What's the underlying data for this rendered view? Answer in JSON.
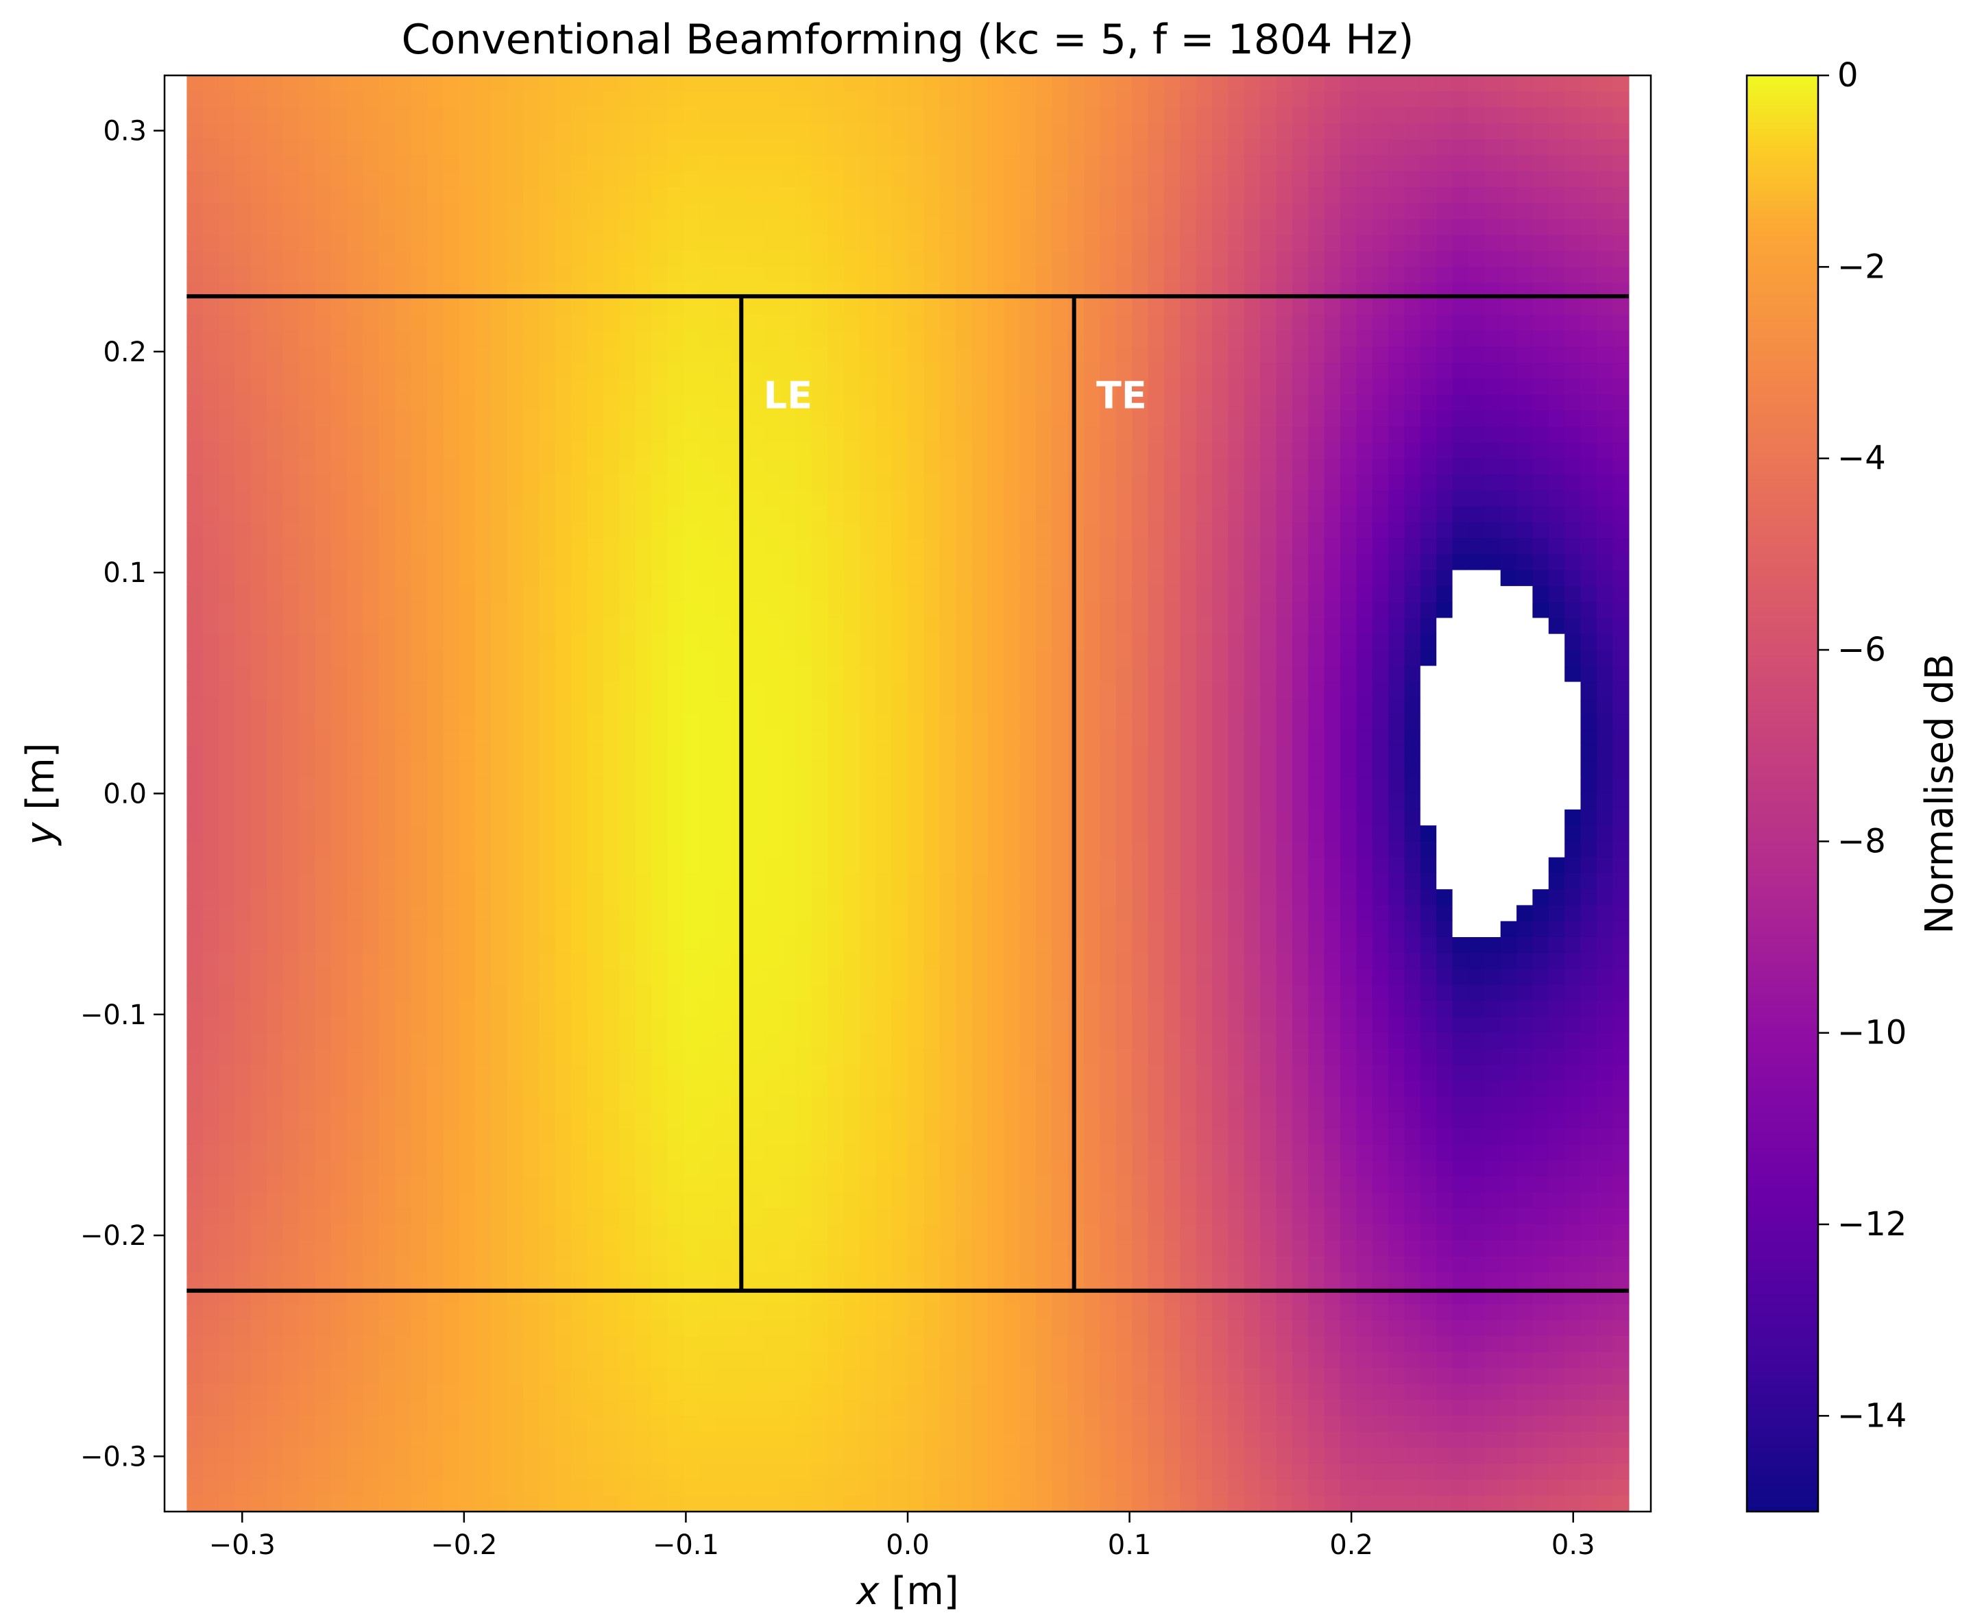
{
  "chart_data": {
    "type": "heatmap",
    "title": "Conventional Beamforming (kc = 5, f = 1804 Hz)",
    "xlabel_var": "x",
    "xlabel_unit": " [m]",
    "ylabel_var": "y",
    "ylabel_unit": " [m]",
    "xlim": [
      -0.335,
      0.335
    ],
    "ylim": [
      -0.325,
      0.325
    ],
    "data_extent_x": [
      -0.325,
      0.325
    ],
    "data_extent_y": [
      -0.325,
      0.325
    ],
    "x_ticks": [
      -0.3,
      -0.2,
      -0.1,
      0.0,
      0.1,
      0.2,
      0.3
    ],
    "x_tick_labels": [
      "−0.3",
      "−0.2",
      "−0.1",
      "0.0",
      "0.1",
      "0.2",
      "0.3"
    ],
    "y_ticks": [
      0.3,
      0.2,
      0.1,
      0.0,
      -0.1,
      -0.2,
      -0.3
    ],
    "y_tick_labels": [
      "0.3",
      "0.2",
      "0.1",
      "0.0",
      "−0.1",
      "−0.2",
      "−0.3"
    ],
    "colorbar": {
      "label": "Normalised dB",
      "range": [
        -15,
        0
      ],
      "colormap": "plasma",
      "ticks": [
        0,
        -2,
        -4,
        -6,
        -8,
        -10,
        -12,
        -14
      ],
      "tick_labels": [
        "0",
        "−2",
        "−4",
        "−6",
        "−8",
        "−10",
        "−12",
        "−14"
      ]
    },
    "field": {
      "grid_x": [
        -0.325,
        -0.25,
        -0.2,
        -0.15,
        -0.1,
        -0.05,
        0.0,
        0.05,
        0.1,
        0.15,
        0.2,
        0.25,
        0.325
      ],
      "profile_center_dB": [
        -6.5,
        -4.5,
        -3.0,
        -1.5,
        -0.2,
        -0.4,
        -1.5,
        -3.2,
        -5.2,
        -8.0,
        -11.0,
        -13.5,
        -12.5
      ],
      "profile_edge_dB": [
        -4.6,
        -3.5,
        -2.8,
        -2.2,
        -1.8,
        -1.8,
        -2.2,
        -3.0,
        -4.3,
        -6.0,
        -7.5,
        -7.5,
        -6.5
      ],
      "peak": {
        "x": -0.1,
        "y": 0.0,
        "value": 0
      },
      "minimum": {
        "x": 0.265,
        "y": 0.025,
        "value": -15
      },
      "below_range_region": "white"
    },
    "overlay_lines": {
      "horizontal_y": [
        0.225,
        -0.225
      ],
      "horizontal_x_range": [
        -0.325,
        0.325
      ],
      "vertical_x": [
        -0.075,
        0.075
      ],
      "vertical_y_range": [
        -0.225,
        0.225
      ],
      "color": "#000000"
    },
    "annotations": [
      {
        "text": "LE",
        "x": -0.065,
        "y": 0.18,
        "color": "#ffffff"
      },
      {
        "text": "TE",
        "x": 0.085,
        "y": 0.18,
        "color": "#ffffff"
      }
    ],
    "grid": false
  }
}
